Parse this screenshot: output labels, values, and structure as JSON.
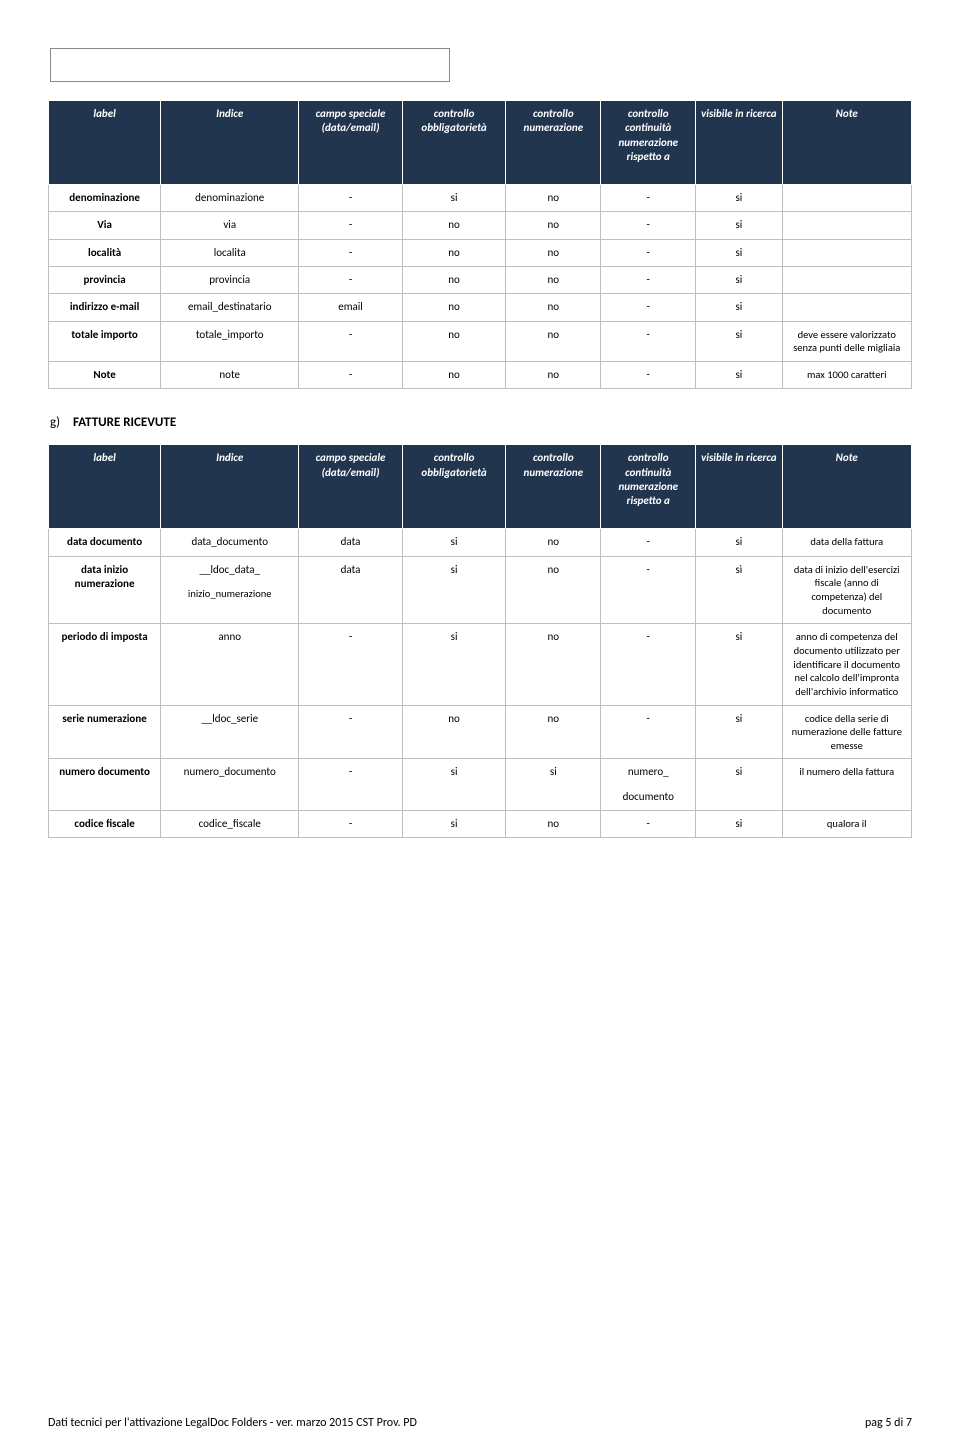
{
  "colors": {
    "header_bg": "#21354f",
    "header_fg": "#ffffff",
    "border": "#bfbfbf"
  },
  "table1": {
    "headers": {
      "label": "label",
      "indice": "Indice",
      "campo": "campo speciale (data/email)",
      "obbl": "controllo obbligatorietà",
      "num": "controllo numerazione",
      "cont": "controllo continuità numerazione rispetto a",
      "vis": "visibile in ricerca",
      "note": "Note"
    },
    "rows": [
      {
        "label": "denominazione",
        "indice": "denominazione",
        "campo": "-",
        "ob": "si",
        "num": "no",
        "cont": "-",
        "vis": "si",
        "note": ""
      },
      {
        "label": "Via",
        "indice": "via",
        "campo": "-",
        "ob": "no",
        "num": "no",
        "cont": "-",
        "vis": "si",
        "note": ""
      },
      {
        "label": "località",
        "indice": "localita",
        "campo": "-",
        "ob": "no",
        "num": "no",
        "cont": "-",
        "vis": "si",
        "note": ""
      },
      {
        "label": "provincia",
        "indice": "provincia",
        "campo": "-",
        "ob": "no",
        "num": "no",
        "cont": "-",
        "vis": "si",
        "note": ""
      },
      {
        "label": "indirizzo e-mail",
        "indice": "email_destinatario",
        "campo": "email",
        "ob": "no",
        "num": "no",
        "cont": "-",
        "vis": "si",
        "note": ""
      },
      {
        "label": "totale importo",
        "indice": "totale_importo",
        "campo": "-",
        "ob": "no",
        "num": "no",
        "cont": "-",
        "vis": "si",
        "note": "deve essere valorizzato senza punti delle migliaia"
      },
      {
        "label": "Note",
        "indice": "note",
        "campo": "-",
        "ob": "no",
        "num": "no",
        "cont": "-",
        "vis": "si",
        "note": "max 1000 caratteri"
      }
    ]
  },
  "section_g": {
    "letter": "g)",
    "title": "FATTURE RICEVUTE"
  },
  "table2": {
    "headers": {
      "label": "label",
      "indice": "Indice",
      "campo": "campo speciale (data/email)",
      "obbl": "controllo obbligatorietà",
      "num": "controllo numerazione",
      "cont": "controllo continuità numerazione rispetto a",
      "vis": "visibile in ricerca",
      "note": "Note"
    },
    "rows": [
      {
        "label": "data documento",
        "indice": "data_documento",
        "campo": "data",
        "ob": "si",
        "num": "no",
        "cont": "-",
        "vis": "si",
        "note": "data della fattura"
      },
      {
        "label": "data inizio numerazione",
        "indice": "__ldoc_data_",
        "indice2": "inizio_numerazione",
        "campo": "data",
        "ob": "si",
        "num": "no",
        "cont": "-",
        "vis": "sì",
        "note": "data di inizio dell'esercizi fiscale (anno di competenza) del documento"
      },
      {
        "label": "periodo di imposta",
        "indice": "anno",
        "campo": "-",
        "ob": "si",
        "num": "no",
        "cont": "-",
        "vis": "si",
        "note": "anno di competenza del documento utilizzato per identificare il documento nel calcolo dell'impronta dell'archivio informatico"
      },
      {
        "label": "serie numerazione",
        "indice": "__ldoc_serie",
        "campo": "-",
        "ob": "no",
        "num": "no",
        "cont": "-",
        "vis": "si",
        "note": "codice della serie di numerazione delle fatture emesse"
      },
      {
        "label": "numero documento",
        "indice": "numero_documento",
        "campo": "-",
        "ob": "si",
        "num": "si",
        "cont": "numero_",
        "cont2": "documento",
        "vis": "si",
        "note": "il numero della fattura"
      },
      {
        "label": "codice fiscale",
        "indice": "codice_fiscale",
        "campo": "-",
        "ob": "si",
        "num": "no",
        "cont": "-",
        "vis": "si",
        "note": "qualora il"
      }
    ]
  },
  "footer": {
    "left": "Dati tecnici per l'attivazione LegalDoc Folders - ver. marzo 2015 CST Prov. PD",
    "right": "pag 5 di 7"
  }
}
